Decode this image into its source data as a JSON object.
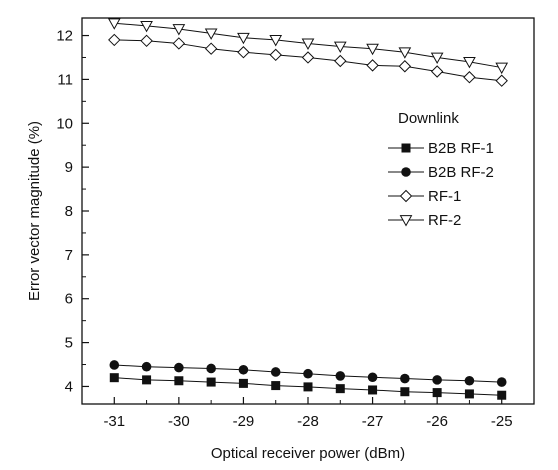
{
  "chart_data": {
    "type": "line",
    "xlabel": "Optical receiver power (dBm)",
    "ylabel": "Error vector magnitude (%)",
    "xlim": [
      -31.5,
      -24.5
    ],
    "ylim": [
      3.6,
      12.4
    ],
    "x_ticks": [
      "-31",
      "-30",
      "-29",
      "-28",
      "-27",
      "-26",
      "-25"
    ],
    "x_tick_values": [
      -31,
      -30,
      -29,
      -28,
      -27,
      -26,
      -25
    ],
    "y_ticks": [
      "4",
      "5",
      "6",
      "7",
      "8",
      "9",
      "10",
      "11",
      "12"
    ],
    "y_tick_values": [
      4,
      5,
      6,
      7,
      8,
      9,
      10,
      11,
      12
    ],
    "grid": false,
    "legend": {
      "title": "Downlink",
      "position": "right-middle"
    },
    "x": [
      -31,
      -30.5,
      -30,
      -29.5,
      -29,
      -28.5,
      -28,
      -27.5,
      -27,
      -26.5,
      -26,
      -25.5,
      -25
    ],
    "series": [
      {
        "name": "B2B RF-1",
        "marker": "square-filled",
        "values": [
          4.2,
          4.15,
          4.13,
          4.1,
          4.07,
          4.02,
          3.99,
          3.95,
          3.92,
          3.88,
          3.86,
          3.83,
          3.8
        ]
      },
      {
        "name": "B2B RF-2",
        "marker": "circle-filled",
        "values": [
          4.49,
          4.45,
          4.43,
          4.41,
          4.38,
          4.33,
          4.29,
          4.24,
          4.21,
          4.18,
          4.15,
          4.13,
          4.1
        ]
      },
      {
        "name": "RF-1",
        "marker": "diamond-open",
        "values": [
          11.9,
          11.88,
          11.82,
          11.7,
          11.62,
          11.56,
          11.5,
          11.42,
          11.32,
          11.3,
          11.18,
          11.05,
          10.97
        ]
      },
      {
        "name": "RF-2",
        "marker": "triangle-down-open",
        "values": [
          12.28,
          12.22,
          12.15,
          12.05,
          11.95,
          11.9,
          11.82,
          11.75,
          11.7,
          11.62,
          11.5,
          11.4,
          11.27
        ]
      }
    ],
    "line_color": "#111111"
  }
}
